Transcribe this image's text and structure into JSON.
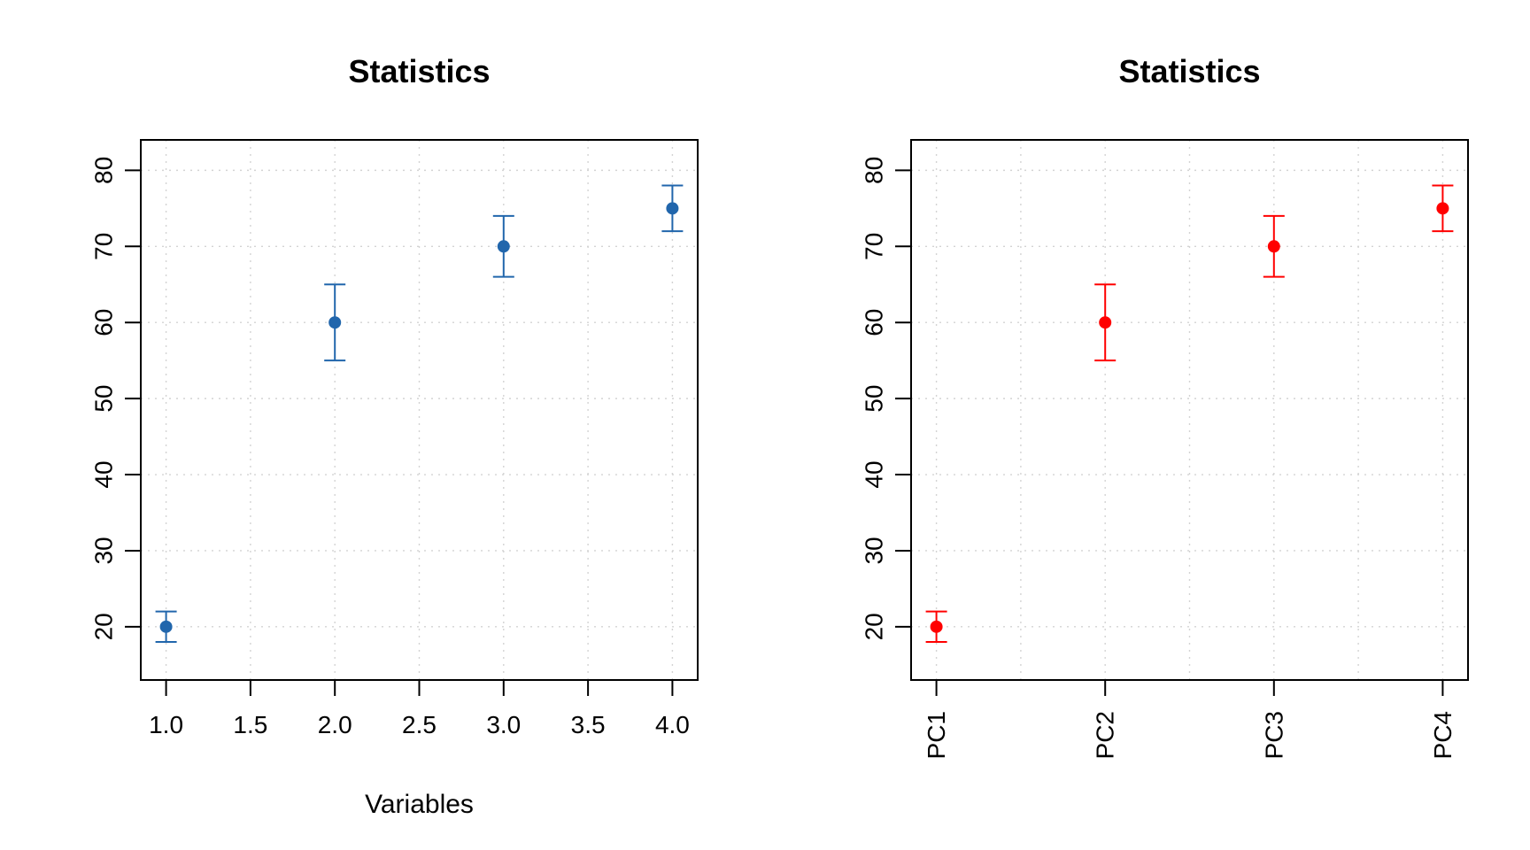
{
  "chart_data": [
    {
      "type": "scatter",
      "title": "Statistics",
      "xlabel": "Variables",
      "ylabel": "",
      "xlim": [
        0.85,
        4.15
      ],
      "ylim": [
        13,
        84
      ],
      "x_ticks": [
        1.0,
        1.5,
        2.0,
        2.5,
        3.0,
        3.5,
        4.0
      ],
      "x_tick_labels": [
        "1.0",
        "1.5",
        "2.0",
        "2.5",
        "3.0",
        "3.5",
        "4.0"
      ],
      "x_tick_rotation": "horizontal",
      "y_ticks": [
        20,
        30,
        40,
        50,
        60,
        70,
        80
      ],
      "y_tick_labels": [
        "20",
        "30",
        "40",
        "50",
        "60",
        "70",
        "80"
      ],
      "grid": true,
      "color": "#2166ac",
      "series": [
        {
          "x": [
            1,
            2,
            3,
            4
          ],
          "y": [
            20,
            60,
            70,
            75
          ],
          "lower": [
            18,
            55,
            66,
            72
          ],
          "upper": [
            22,
            65,
            74,
            78
          ]
        }
      ]
    },
    {
      "type": "scatter",
      "title": "Statistics",
      "xlabel": "",
      "ylabel": "",
      "xlim": [
        0.85,
        4.15
      ],
      "ylim": [
        13,
        84
      ],
      "x_ticks": [
        1,
        2,
        3,
        4
      ],
      "x_tick_labels": [
        "PC1",
        "PC2",
        "PC3",
        "PC4"
      ],
      "x_minor_grid": [
        1.5,
        2.5,
        3.5
      ],
      "x_tick_rotation": "vertical",
      "y_ticks": [
        20,
        30,
        40,
        50,
        60,
        70,
        80
      ],
      "y_tick_labels": [
        "20",
        "30",
        "40",
        "50",
        "60",
        "70",
        "80"
      ],
      "grid": true,
      "color": "#ff0000",
      "series": [
        {
          "x": [
            1,
            2,
            3,
            4
          ],
          "y": [
            20,
            60,
            70,
            75
          ],
          "lower": [
            18,
            55,
            66,
            72
          ],
          "upper": [
            22,
            65,
            74,
            78
          ]
        }
      ]
    }
  ]
}
